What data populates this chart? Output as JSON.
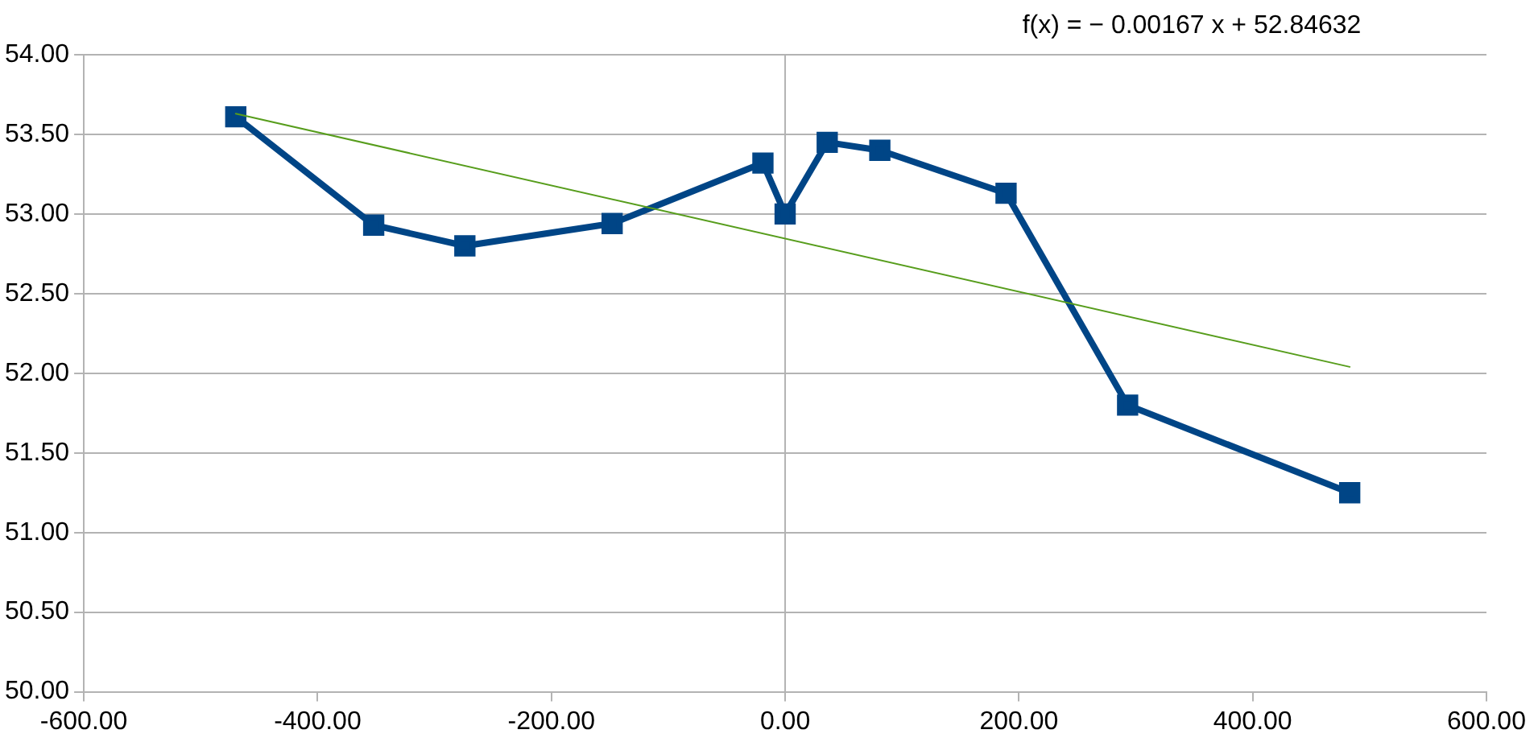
{
  "chart_data": {
    "type": "line",
    "annotations": [
      "f(x) = − 0.00167 x + 52.84632"
    ],
    "xlim": [
      -600,
      600
    ],
    "xticks": [
      {
        "value": -600,
        "label": "-600.00"
      },
      {
        "value": -400,
        "label": "-400.00"
      },
      {
        "value": -200,
        "label": "-200.00"
      },
      {
        "value": 0,
        "label": "0.00"
      },
      {
        "value": 200,
        "label": "200.00"
      },
      {
        "value": 400,
        "label": "400.00"
      },
      {
        "value": 600,
        "label": "600.00"
      }
    ],
    "ylim": [
      50,
      54
    ],
    "yticks": [
      {
        "value": 50,
        "label": "50.00"
      },
      {
        "value": 50.5,
        "label": "50.50"
      },
      {
        "value": 51,
        "label": "51.00"
      },
      {
        "value": 51.5,
        "label": "51.50"
      },
      {
        "value": 52,
        "label": "52.00"
      },
      {
        "value": 52.5,
        "label": "52.50"
      },
      {
        "value": 53,
        "label": "53.00"
      },
      {
        "value": 53.5,
        "label": "53.50"
      },
      {
        "value": 54,
        "label": "54.00"
      }
    ],
    "grid": "y",
    "legend": false,
    "marker": "square",
    "line_style": "solid",
    "ref_lines": [
      {
        "axis": "x",
        "value": 0,
        "color": "#b3b3b3"
      }
    ],
    "series": [
      {
        "color": "#004586",
        "x": [
          -470,
          -352,
          -274,
          -148,
          -19,
          0,
          36,
          81,
          189,
          293,
          483
        ],
        "values": [
          53.61,
          52.93,
          52.8,
          52.94,
          53.32,
          53.0,
          53.45,
          53.4,
          53.13,
          51.8,
          51.25
        ]
      },
      {
        "type": "line",
        "marker": "none",
        "color": "#579d1c",
        "x": [
          -470,
          483
        ],
        "values": [
          53.63,
          52.04
        ]
      }
    ]
  }
}
